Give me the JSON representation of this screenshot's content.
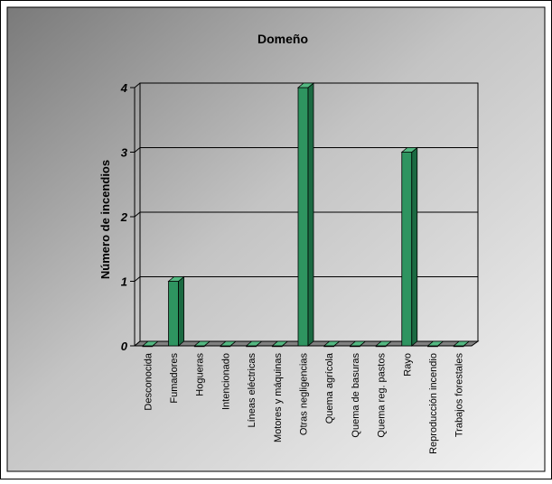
{
  "chart_data": {
    "type": "bar",
    "title": "Domeño",
    "xlabel": "",
    "ylabel": "Número de incendios",
    "ylim": [
      0,
      4
    ],
    "yticks": [
      0,
      1,
      2,
      3,
      4
    ],
    "grid": true,
    "legend": "none",
    "style": "3d",
    "categories": [
      "Desconocida",
      "Fumadores",
      "Hogueras",
      "Intencionado",
      "Líneas eléctricas",
      "Motores y máquinas",
      "Otras negligencias",
      "Quema agrícola",
      "Quema de basuras",
      "Quema reg. pastos",
      "Rayo",
      "Reproducción incendio",
      "Trabajos forestales"
    ],
    "values": [
      0,
      1,
      0,
      0,
      0,
      0,
      4,
      0,
      0,
      0,
      3,
      0,
      0
    ],
    "colors": {
      "bar_front": "#2e9460",
      "bar_side": "#1b6a42",
      "bar_top": "#54b882",
      "background_dark": "#7a7a7a",
      "background_light": "#f2f2f2"
    }
  }
}
